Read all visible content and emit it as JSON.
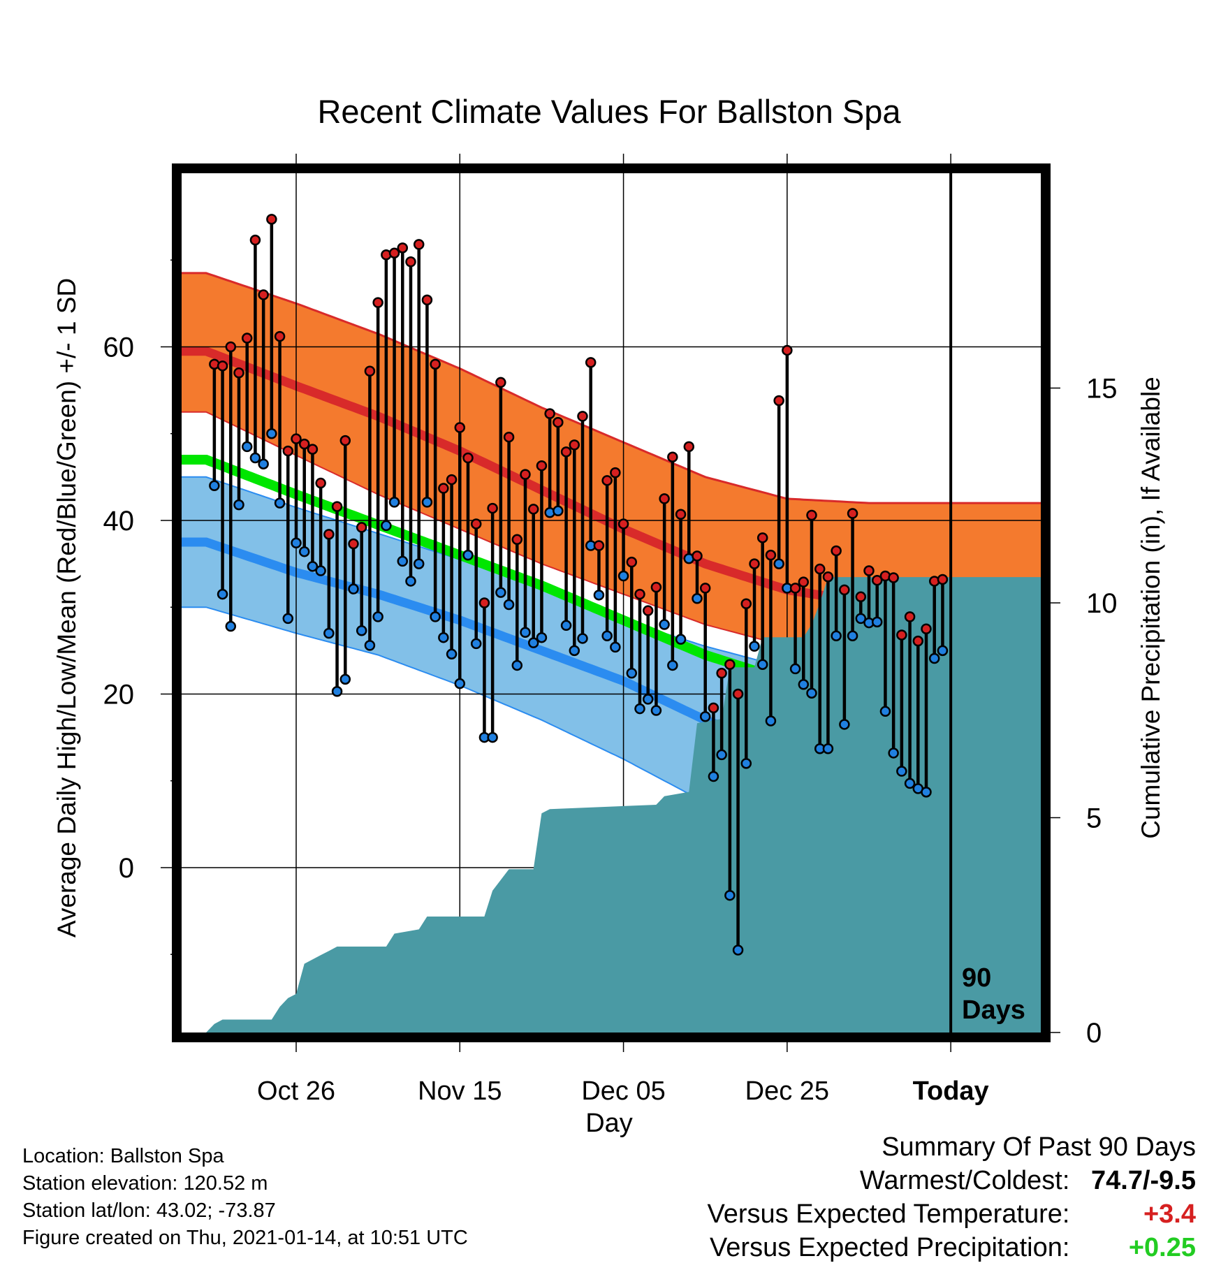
{
  "chart_data": {
    "type": "line",
    "title": "Recent Climate Values For Ballston Spa",
    "xlabel": "Day",
    "ylabel_left": "Average Daily High/Low/Mean (Red/Blue/Green) +/- 1 SD",
    "ylabel_right": "Cumulative Precipitation (in), If Available",
    "today_label": "Today",
    "period_label_line1": "90",
    "period_label_line2": "Days",
    "xlim": [
      0,
      105
    ],
    "ylim": [
      -19,
      80
    ],
    "precip_ylim": [
      0,
      20
    ],
    "x_ticks": [
      {
        "x": 14,
        "label": "Oct 26"
      },
      {
        "x": 34,
        "label": "Nov 15"
      },
      {
        "x": 54,
        "label": "Dec 05"
      },
      {
        "x": 74,
        "label": "Dec 25"
      },
      {
        "x": 94,
        "label": "Today"
      }
    ],
    "y_ticks_left": [
      {
        "v": 0,
        "label": "0"
      },
      {
        "v": 20,
        "label": "20"
      },
      {
        "v": 40,
        "label": "40"
      },
      {
        "v": 60,
        "label": "60"
      }
    ],
    "y_minor_left": [
      -10,
      10,
      30,
      50,
      70
    ],
    "y_ticks_right": [
      {
        "v": 0,
        "label": "0"
      },
      {
        "v": 5,
        "label": "5"
      },
      {
        "v": 10,
        "label": "10"
      },
      {
        "v": 15,
        "label": "15"
      }
    ],
    "normals": {
      "days": [
        3,
        14,
        24,
        34,
        44,
        54,
        64,
        74,
        84,
        94,
        104
      ],
      "high_mean": [
        59.5,
        55.5,
        52.0,
        48.0,
        43.5,
        39.0,
        35.0,
        32.0,
        30.5,
        30.5,
        31.0
      ],
      "high_plus_sd": [
        68.5,
        65.0,
        61.5,
        57.5,
        53.0,
        49.0,
        45.0,
        42.5,
        42.0,
        42.0,
        42.0
      ],
      "high_minus_sd": [
        52.5,
        47.5,
        43.0,
        39.0,
        35.0,
        31.5,
        28.0,
        25.5,
        24.0,
        24.0,
        24.0
      ],
      "mean": [
        47.0,
        43.0,
        39.5,
        36.0,
        32.5,
        28.5,
        24.5,
        21.5,
        20.0,
        19.0,
        19.0
      ],
      "low_mean": [
        37.5,
        34.0,
        31.5,
        28.5,
        25.0,
        21.5,
        17.0,
        13.5,
        11.0,
        10.5,
        10.5
      ],
      "low_plus_sd": [
        45.0,
        41.5,
        38.5,
        35.5,
        32.0,
        28.5,
        25.5,
        23.0,
        19.5,
        18.5,
        18.5
      ],
      "low_minus_sd": [
        30.0,
        27.0,
        24.5,
        21.0,
        17.0,
        12.5,
        7.5,
        3.0,
        -0.5,
        -1.5,
        -1.5
      ]
    },
    "colors": {
      "high_band": "#f47a2e",
      "high_line": "#d82a2a",
      "low_band": "#82c0e8",
      "low_line": "#2b8cf0",
      "mean_line": "#00e600",
      "above_normal": "#930f12",
      "precip_fill": "#4a9aa4",
      "high_dot": "#d62020",
      "low_dot": "#2080e0"
    },
    "observed": [
      {
        "day": 4,
        "high": 58.0,
        "low": 44.0
      },
      {
        "day": 5,
        "high": 57.8,
        "low": 31.5
      },
      {
        "day": 6,
        "high": 60.0,
        "low": 27.8
      },
      {
        "day": 7,
        "high": 57.0,
        "low": 41.8
      },
      {
        "day": 8,
        "high": 61.0,
        "low": 48.5
      },
      {
        "day": 9,
        "high": 72.3,
        "low": 47.2
      },
      {
        "day": 10,
        "high": 66.0,
        "low": 46.5
      },
      {
        "day": 11,
        "high": 74.7,
        "low": 50.0
      },
      {
        "day": 12,
        "high": 61.2,
        "low": 42.0
      },
      {
        "day": 13,
        "high": 48.0,
        "low": 28.7
      },
      {
        "day": 14,
        "high": 49.4,
        "low": 37.4
      },
      {
        "day": 15,
        "high": 48.8,
        "low": 36.4
      },
      {
        "day": 16,
        "high": 48.2,
        "low": 34.7
      },
      {
        "day": 17,
        "high": 44.3,
        "low": 34.2
      },
      {
        "day": 18,
        "high": 38.4,
        "low": 27.0
      },
      {
        "day": 19,
        "high": 41.6,
        "low": 20.3
      },
      {
        "day": 20,
        "high": 49.2,
        "low": 21.7
      },
      {
        "day": 21,
        "high": 37.3,
        "low": 32.1
      },
      {
        "day": 22,
        "high": 39.2,
        "low": 27.3
      },
      {
        "day": 23,
        "high": 57.2,
        "low": 25.6
      },
      {
        "day": 24,
        "high": 65.1,
        "low": 28.9
      },
      {
        "day": 25,
        "high": 70.6,
        "low": 39.4
      },
      {
        "day": 26,
        "high": 70.8,
        "low": 42.1
      },
      {
        "day": 27,
        "high": 71.4,
        "low": 35.3
      },
      {
        "day": 28,
        "high": 69.8,
        "low": 33.0
      },
      {
        "day": 29,
        "high": 71.8,
        "low": 35.0
      },
      {
        "day": 30,
        "high": 65.4,
        "low": 42.1
      },
      {
        "day": 31,
        "high": 58.0,
        "low": 28.9
      },
      {
        "day": 32,
        "high": 43.7,
        "low": 26.5
      },
      {
        "day": 33,
        "high": 44.7,
        "low": 24.6
      },
      {
        "day": 34,
        "high": 50.7,
        "low": 21.2
      },
      {
        "day": 35,
        "high": 47.2,
        "low": 36.0
      },
      {
        "day": 36,
        "high": 39.6,
        "low": 25.8
      },
      {
        "day": 37,
        "high": 30.5,
        "low": 15.0
      },
      {
        "day": 38,
        "high": 41.4,
        "low": 15.0
      },
      {
        "day": 39,
        "high": 55.9,
        "low": 31.7
      },
      {
        "day": 40,
        "high": 49.6,
        "low": 30.3
      },
      {
        "day": 41,
        "high": 37.8,
        "low": 23.3
      },
      {
        "day": 42,
        "high": 45.3,
        "low": 27.1
      },
      {
        "day": 43,
        "high": 41.3,
        "low": 25.9
      },
      {
        "day": 44,
        "high": 46.3,
        "low": 26.5
      },
      {
        "day": 45,
        "high": 52.3,
        "low": 40.9
      },
      {
        "day": 46,
        "high": 51.3,
        "low": 41.1
      },
      {
        "day": 47,
        "high": 47.9,
        "low": 27.9
      },
      {
        "day": 48,
        "high": 48.7,
        "low": 25.0
      },
      {
        "day": 49,
        "high": 52.0,
        "low": 26.4
      },
      {
        "day": 50,
        "high": 58.2,
        "low": 37.1
      },
      {
        "day": 51,
        "high": 37.1,
        "low": 31.4
      },
      {
        "day": 52,
        "high": 44.6,
        "low": 26.7
      },
      {
        "day": 53,
        "high": 45.5,
        "low": 25.4
      },
      {
        "day": 54,
        "high": 39.6,
        "low": 33.6
      },
      {
        "day": 55,
        "high": 35.2,
        "low": 22.4
      },
      {
        "day": 56,
        "high": 31.5,
        "low": 18.3
      },
      {
        "day": 57,
        "high": 29.6,
        "low": 19.4
      },
      {
        "day": 58,
        "high": 32.3,
        "low": 18.1
      },
      {
        "day": 59,
        "high": 42.5,
        "low": 28.0
      },
      {
        "day": 60,
        "high": 47.3,
        "low": 23.3
      },
      {
        "day": 61,
        "high": 40.7,
        "low": 26.3
      },
      {
        "day": 62,
        "high": 48.5,
        "low": 35.6
      },
      {
        "day": 63,
        "high": 35.9,
        "low": 31.0
      },
      {
        "day": 64,
        "high": 32.2,
        "low": 17.4
      },
      {
        "day": 65,
        "high": 18.4,
        "low": 10.5
      },
      {
        "day": 66,
        "high": 22.4,
        "low": 13.0
      },
      {
        "day": 67,
        "high": 23.4,
        "low": -3.2
      },
      {
        "day": 68,
        "high": 20.0,
        "low": -9.5
      },
      {
        "day": 69,
        "high": 30.4,
        "low": 12.0
      },
      {
        "day": 70,
        "high": 35.0,
        "low": 25.5
      },
      {
        "day": 71,
        "high": 38.0,
        "low": 23.4
      },
      {
        "day": 72,
        "high": 36.0,
        "low": 16.9
      },
      {
        "day": 73,
        "high": 53.8,
        "low": 35.0
      },
      {
        "day": 74,
        "high": 59.6,
        "low": 32.2
      },
      {
        "day": 75,
        "high": 32.2,
        "low": 22.9
      },
      {
        "day": 76,
        "high": 32.9,
        "low": 21.1
      },
      {
        "day": 77,
        "high": 40.6,
        "low": 20.1
      },
      {
        "day": 78,
        "high": 34.4,
        "low": 13.7
      },
      {
        "day": 79,
        "high": 33.5,
        "low": 13.7
      },
      {
        "day": 80,
        "high": 36.5,
        "low": 26.7
      },
      {
        "day": 81,
        "high": 32.0,
        "low": 16.5
      },
      {
        "day": 82,
        "high": 40.8,
        "low": 26.7
      },
      {
        "day": 83,
        "high": 31.2,
        "low": 28.7
      },
      {
        "day": 84,
        "high": 34.2,
        "low": 28.2
      },
      {
        "day": 85,
        "high": 33.1,
        "low": 28.3
      },
      {
        "day": 86,
        "high": 33.6,
        "low": 18.0
      },
      {
        "day": 87,
        "high": 33.4,
        "low": 13.2
      },
      {
        "day": 88,
        "high": 26.8,
        "low": 11.1
      },
      {
        "day": 89,
        "high": 28.9,
        "low": 9.7
      },
      {
        "day": 90,
        "high": 26.1,
        "low": 9.1
      },
      {
        "day": 91,
        "high": 27.5,
        "low": 8.7
      },
      {
        "day": 92,
        "high": 33.0,
        "low": 24.1
      },
      {
        "day": 93,
        "high": 33.2,
        "low": 25.0
      }
    ],
    "precip_cumulative": [
      {
        "day": 0,
        "value": 0.0
      },
      {
        "day": 3,
        "value": 0.0
      },
      {
        "day": 4,
        "value": 0.2
      },
      {
        "day": 5,
        "value": 0.3
      },
      {
        "day": 10,
        "value": 0.3
      },
      {
        "day": 11,
        "value": 0.3
      },
      {
        "day": 12,
        "value": 0.6
      },
      {
        "day": 13,
        "value": 0.8
      },
      {
        "day": 14,
        "value": 0.9
      },
      {
        "day": 15,
        "value": 1.6
      },
      {
        "day": 17,
        "value": 1.8
      },
      {
        "day": 18,
        "value": 1.9
      },
      {
        "day": 19,
        "value": 2.0
      },
      {
        "day": 25,
        "value": 2.0
      },
      {
        "day": 26,
        "value": 2.3
      },
      {
        "day": 29,
        "value": 2.4
      },
      {
        "day": 30,
        "value": 2.7
      },
      {
        "day": 37,
        "value": 2.7
      },
      {
        "day": 38,
        "value": 3.3
      },
      {
        "day": 40,
        "value": 3.8
      },
      {
        "day": 43,
        "value": 3.8
      },
      {
        "day": 44,
        "value": 5.1
      },
      {
        "day": 45,
        "value": 5.2
      },
      {
        "day": 58,
        "value": 5.3
      },
      {
        "day": 59,
        "value": 5.5
      },
      {
        "day": 62,
        "value": 5.6
      },
      {
        "day": 63,
        "value": 7.2
      },
      {
        "day": 66,
        "value": 7.3
      },
      {
        "day": 67,
        "value": 8.5
      },
      {
        "day": 70,
        "value": 8.5
      },
      {
        "day": 71,
        "value": 9.2
      },
      {
        "day": 76,
        "value": 9.2
      },
      {
        "day": 77,
        "value": 9.5
      },
      {
        "day": 78,
        "value": 10.0
      },
      {
        "day": 79,
        "value": 10.6
      },
      {
        "day": 105,
        "value": 10.6
      }
    ]
  },
  "info": {
    "location": "Location: Ballston Spa",
    "elevation": "Station elevation: 120.52 m",
    "latlon": "Station lat/lon: 43.02; -73.87",
    "created": "Figure created on Thu, 2021-01-14, at 10:51 UTC"
  },
  "summary": {
    "heading": "Summary Of Past 90 Days",
    "warmest_label": "Warmest/Coldest:",
    "warmest_value": "74.7/-9.5",
    "temp_label": "Versus Expected Temperature:",
    "temp_value": "+3.4",
    "temp_color": "#d62020",
    "precip_label": "Versus Expected Precipitation:",
    "precip_value": "+0.25",
    "precip_color": "#22cc22"
  }
}
